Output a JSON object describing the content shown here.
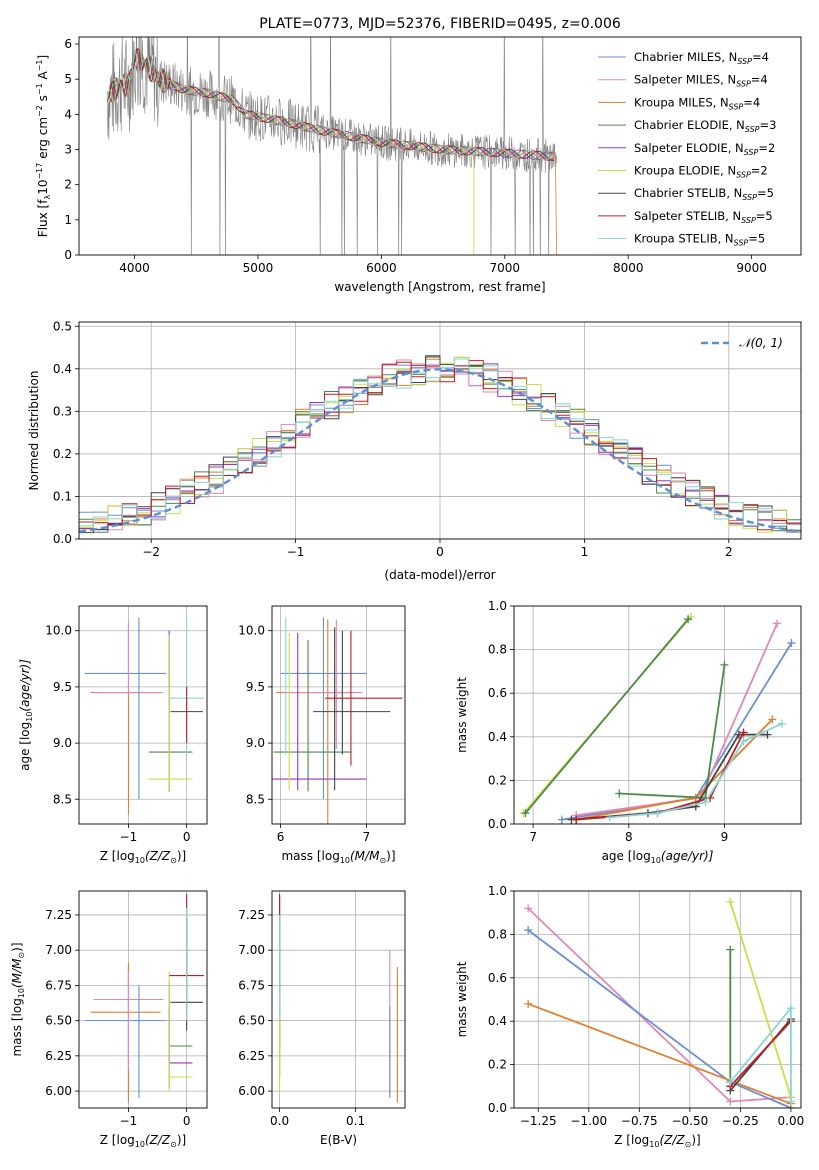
{
  "colors": {
    "Chabrier MILES": "#6a8fd4",
    "Salpeter MILES": "#e387b5",
    "Kroupa MILES": "#e0802f",
    "Chabrier ELODIE": "#4a8a4a",
    "Salpeter ELODIE": "#9b35b8",
    "Kroupa ELODIE": "#cfdb4a",
    "Chabrier STELIB": "#444444",
    "Salpeter STELIB": "#c21d1d",
    "Kroupa STELIB": "#86d6d6",
    "data": "#808080",
    "normal": "#5b8fd3"
  },
  "chart_data": [
    {
      "id": "spectrum",
      "type": "line",
      "title": "PLATE=0773, MJD=52376, FIBERID=0495, z=0.006",
      "xlabel": "wavelength [Angstrom, rest frame]",
      "ylabel": "Flux [f",
      "ylabel_parts": [
        "λ",
        "10",
        "−17",
        " erg cm",
        "−2",
        " s",
        "−1",
        " A",
        "−1",
        "]"
      ],
      "xlim": [
        3550,
        9400
      ],
      "ylim": [
        0,
        6.2
      ],
      "xticks": [
        "4000",
        "5000",
        "6000",
        "7000",
        "8000",
        "9000"
      ],
      "xtick_values": [
        4000,
        5000,
        6000,
        7000,
        8000,
        9000
      ],
      "yticks": [
        "0",
        "1",
        "2",
        "3",
        "4",
        "5",
        "6"
      ],
      "ytick_values": [
        0,
        1,
        2,
        3,
        4,
        5,
        6
      ],
      "data_range": [
        3780,
        7420
      ],
      "model_envelope": {
        "x": [
          3780,
          3900,
          3950,
          4000,
          4100,
          4200,
          4400,
          4600,
          4800,
          4900,
          5200,
          5500,
          6000,
          6500,
          7000,
          7400
        ],
        "y": [
          4.5,
          4.9,
          4.8,
          5.6,
          5.4,
          5.0,
          4.7,
          4.6,
          4.4,
          4.0,
          3.8,
          3.55,
          3.2,
          3.0,
          2.9,
          2.8
        ]
      },
      "legend": [
        {
          "label": "Chabrier MILES, N",
          "sub": "SSP",
          "n": "=4"
        },
        {
          "label": "Salpeter MILES, N",
          "sub": "SSP",
          "n": "=4"
        },
        {
          "label": "Kroupa MILES, N",
          "sub": "SSP",
          "n": "=4"
        },
        {
          "label": "Chabrier ELODIE, N",
          "sub": "SSP",
          "n": "=3"
        },
        {
          "label": "Salpeter ELODIE, N",
          "sub": "SSP",
          "n": "=2"
        },
        {
          "label": "Kroupa ELODIE, N",
          "sub": "SSP",
          "n": "=2"
        },
        {
          "label": "Chabrier STELIB, N",
          "sub": "SSP",
          "n": "=5"
        },
        {
          "label": "Salpeter STELIB, N",
          "sub": "SSP",
          "n": "=5"
        },
        {
          "label": "Kroupa STELIB, N",
          "sub": "SSP",
          "n": "=5"
        }
      ],
      "series_keys": [
        "Chabrier MILES",
        "Salpeter MILES",
        "Kroupa MILES",
        "Chabrier ELODIE",
        "Salpeter ELODIE",
        "Kroupa ELODIE",
        "Chabrier STELIB",
        "Salpeter STELIB",
        "Kroupa STELIB"
      ]
    },
    {
      "id": "residuals",
      "type": "histogram",
      "xlabel": "(data-model)/error",
      "ylabel": "Normed distribution",
      "xlim": [
        -2.5,
        2.5
      ],
      "ylim": [
        0,
        0.51
      ],
      "xticks": [
        "−2",
        "−1",
        "0",
        "1",
        "2"
      ],
      "xtick_values": [
        -2,
        -1,
        0,
        1,
        2
      ],
      "yticks": [
        "0.0",
        "0.1",
        "0.2",
        "0.3",
        "0.4",
        "0.5"
      ],
      "ytick_values": [
        0,
        0.1,
        0.2,
        0.3,
        0.4,
        0.5
      ],
      "grid": true,
      "legend_label": "𝒩(0, 1)",
      "bin_width": 0.1
    },
    {
      "id": "age-vs-Z",
      "type": "errorbar",
      "xlabel": "Z [log",
      "xlabel_suffix": "(Z/Z",
      "xlabel_end": ")]",
      "ylabel": "age  [log",
      "ylabel_suffix": "(age/yr)]",
      "xlim": [
        -1.85,
        0.35
      ],
      "ylim": [
        8.28,
        10.22
      ],
      "xticks": [
        "−1",
        "0"
      ],
      "xtick_values": [
        -1,
        0
      ],
      "yticks": [
        "8.5",
        "9.0",
        "9.5",
        "10.0"
      ],
      "ytick_values": [
        8.5,
        9.0,
        9.5,
        10.0
      ]
    },
    {
      "id": "age-vs-mass",
      "type": "errorbar",
      "xlabel": "mass [log",
      "xlabel_suffix": "(M/M",
      "xlabel_end": ")]",
      "xlim": [
        5.9,
        7.45
      ],
      "ylim": [
        8.28,
        10.22
      ],
      "xticks": [
        "6",
        "7"
      ],
      "xtick_values": [
        6,
        7
      ],
      "yticks": [
        "8.5",
        "9.0",
        "9.5",
        "10.0"
      ],
      "ytick_values": [
        8.5,
        9.0,
        9.5,
        10.0
      ]
    },
    {
      "id": "weight-vs-age",
      "type": "line",
      "xlabel": "age  [log",
      "xlabel_suffix": "(age/yr)]",
      "ylabel": "mass weight",
      "xlim": [
        6.8,
        9.8
      ],
      "ylim": [
        0,
        1.0
      ],
      "xticks": [
        "7",
        "8",
        "9"
      ],
      "xtick_values": [
        7,
        8,
        9
      ],
      "yticks": [
        "0.0",
        "0.2",
        "0.4",
        "0.6",
        "0.8",
        "1.0"
      ],
      "ytick_values": [
        0,
        0.2,
        0.4,
        0.6,
        0.8,
        1.0
      ],
      "series": [
        {
          "key": "Kroupa ELODIE",
          "x": [
            6.9,
            8.65
          ],
          "y": [
            0.05,
            0.95
          ]
        },
        {
          "key": "Chabrier ELODIE",
          "x": [
            6.92,
            8.62
          ],
          "y": [
            0.05,
            0.94
          ]
        },
        {
          "key": "Chabrier MILES",
          "x": [
            7.3,
            8.7,
            9.7
          ],
          "y": [
            0.02,
            0.12,
            0.83
          ]
        },
        {
          "key": "Salpeter MILES",
          "x": [
            7.45,
            8.75,
            9.55
          ],
          "y": [
            0.04,
            0.12,
            0.92
          ]
        },
        {
          "key": "Kroupa MILES",
          "x": [
            7.45,
            8.7,
            9.5
          ],
          "y": [
            0.02,
            0.12,
            0.48
          ]
        },
        {
          "key": "Chabrier ELODIE",
          "x": [
            7.9,
            8.8,
            9.0
          ],
          "y": [
            0.14,
            0.12,
            0.73
          ]
        },
        {
          "key": "Chabrier STELIB",
          "x": [
            7.4,
            8.2,
            8.7,
            9.15,
            9.45
          ],
          "y": [
            0.02,
            0.05,
            0.08,
            0.41,
            0.41
          ]
        },
        {
          "key": "Salpeter STELIB",
          "x": [
            7.45,
            8.3,
            8.85,
            9.2
          ],
          "y": [
            0.02,
            0.05,
            0.12,
            0.42
          ]
        },
        {
          "key": "Kroupa STELIB",
          "x": [
            7.8,
            8.3,
            8.8,
            9.2,
            9.6
          ],
          "y": [
            0.03,
            0.05,
            0.1,
            0.38,
            0.46
          ]
        }
      ]
    },
    {
      "id": "mass-vs-Z",
      "type": "errorbar",
      "xlabel": "Z [log",
      "xlabel_suffix": "(Z/Z",
      "xlabel_end": ")]",
      "ylabel": "mass [log",
      "ylabel_suffix": "(M/M",
      "ylabel_end": ")]",
      "xlim": [
        -1.85,
        0.35
      ],
      "ylim": [
        5.88,
        7.42
      ],
      "xticks": [
        "−1",
        "0"
      ],
      "xtick_values": [
        -1,
        0
      ],
      "yticks": [
        "6.00",
        "6.25",
        "6.50",
        "6.75",
        "7.00",
        "7.25"
      ],
      "ytick_values": [
        6.0,
        6.25,
        6.5,
        6.75,
        7.0,
        7.25
      ]
    },
    {
      "id": "mass-vs-EBV",
      "type": "errorbar",
      "xlabel": "E(B-V)",
      "xlim": [
        -0.01,
        0.165
      ],
      "ylim": [
        5.88,
        7.42
      ],
      "xticks": [
        "0.0",
        "0.1"
      ],
      "xtick_values": [
        0,
        0.1
      ],
      "yticks": [
        "6.00",
        "6.25",
        "6.50",
        "6.75",
        "7.00",
        "7.25"
      ],
      "ytick_values": [
        6.0,
        6.25,
        6.5,
        6.75,
        7.0,
        7.25
      ]
    },
    {
      "id": "weight-vs-Z",
      "type": "line",
      "xlabel": "Z [log",
      "xlabel_suffix": "(Z/Z",
      "xlabel_end": ")]",
      "ylabel": "mass weight",
      "xlim": [
        -1.37,
        0.05
      ],
      "ylim": [
        0,
        1.0
      ],
      "xticks": [
        "−1.25",
        "−1.00",
        "−0.75",
        "−0.50",
        "−0.25",
        "0.00"
      ],
      "xtick_values": [
        -1.25,
        -1.0,
        -0.75,
        -0.5,
        -0.25,
        0.0
      ],
      "yticks": [
        "0.0",
        "0.2",
        "0.4",
        "0.6",
        "0.8",
        "1.0"
      ],
      "ytick_values": [
        0,
        0.2,
        0.4,
        0.6,
        0.8,
        1.0
      ],
      "series": [
        {
          "key": "Salpeter MILES",
          "x": [
            -1.3,
            -0.3,
            0.0
          ],
          "y": [
            0.92,
            0.03,
            0.05
          ]
        },
        {
          "key": "Chabrier MILES",
          "x": [
            -1.3,
            -0.3,
            0.0
          ],
          "y": [
            0.82,
            0.12,
            0.0
          ]
        },
        {
          "key": "Kroupa MILES",
          "x": [
            -1.3,
            0.0
          ],
          "y": [
            0.48,
            0.02
          ]
        },
        {
          "key": "Kroupa ELODIE",
          "x": [
            -0.3,
            0.0
          ],
          "y": [
            0.95,
            0.05
          ]
        },
        {
          "key": "Chabrier ELODIE",
          "x": [
            -0.3,
            -0.3
          ],
          "y": [
            0.73,
            0.12
          ]
        },
        {
          "key": "Chabrier STELIB",
          "x": [
            -0.3,
            0.0
          ],
          "y": [
            0.08,
            0.41
          ]
        },
        {
          "key": "Salpeter STELIB",
          "x": [
            -0.3,
            0.0
          ],
          "y": [
            0.1,
            0.4
          ]
        },
        {
          "key": "Kroupa STELIB",
          "x": [
            -0.3,
            0.0,
            0.0
          ],
          "y": [
            0.12,
            0.46,
            0.03
          ]
        }
      ]
    }
  ]
}
